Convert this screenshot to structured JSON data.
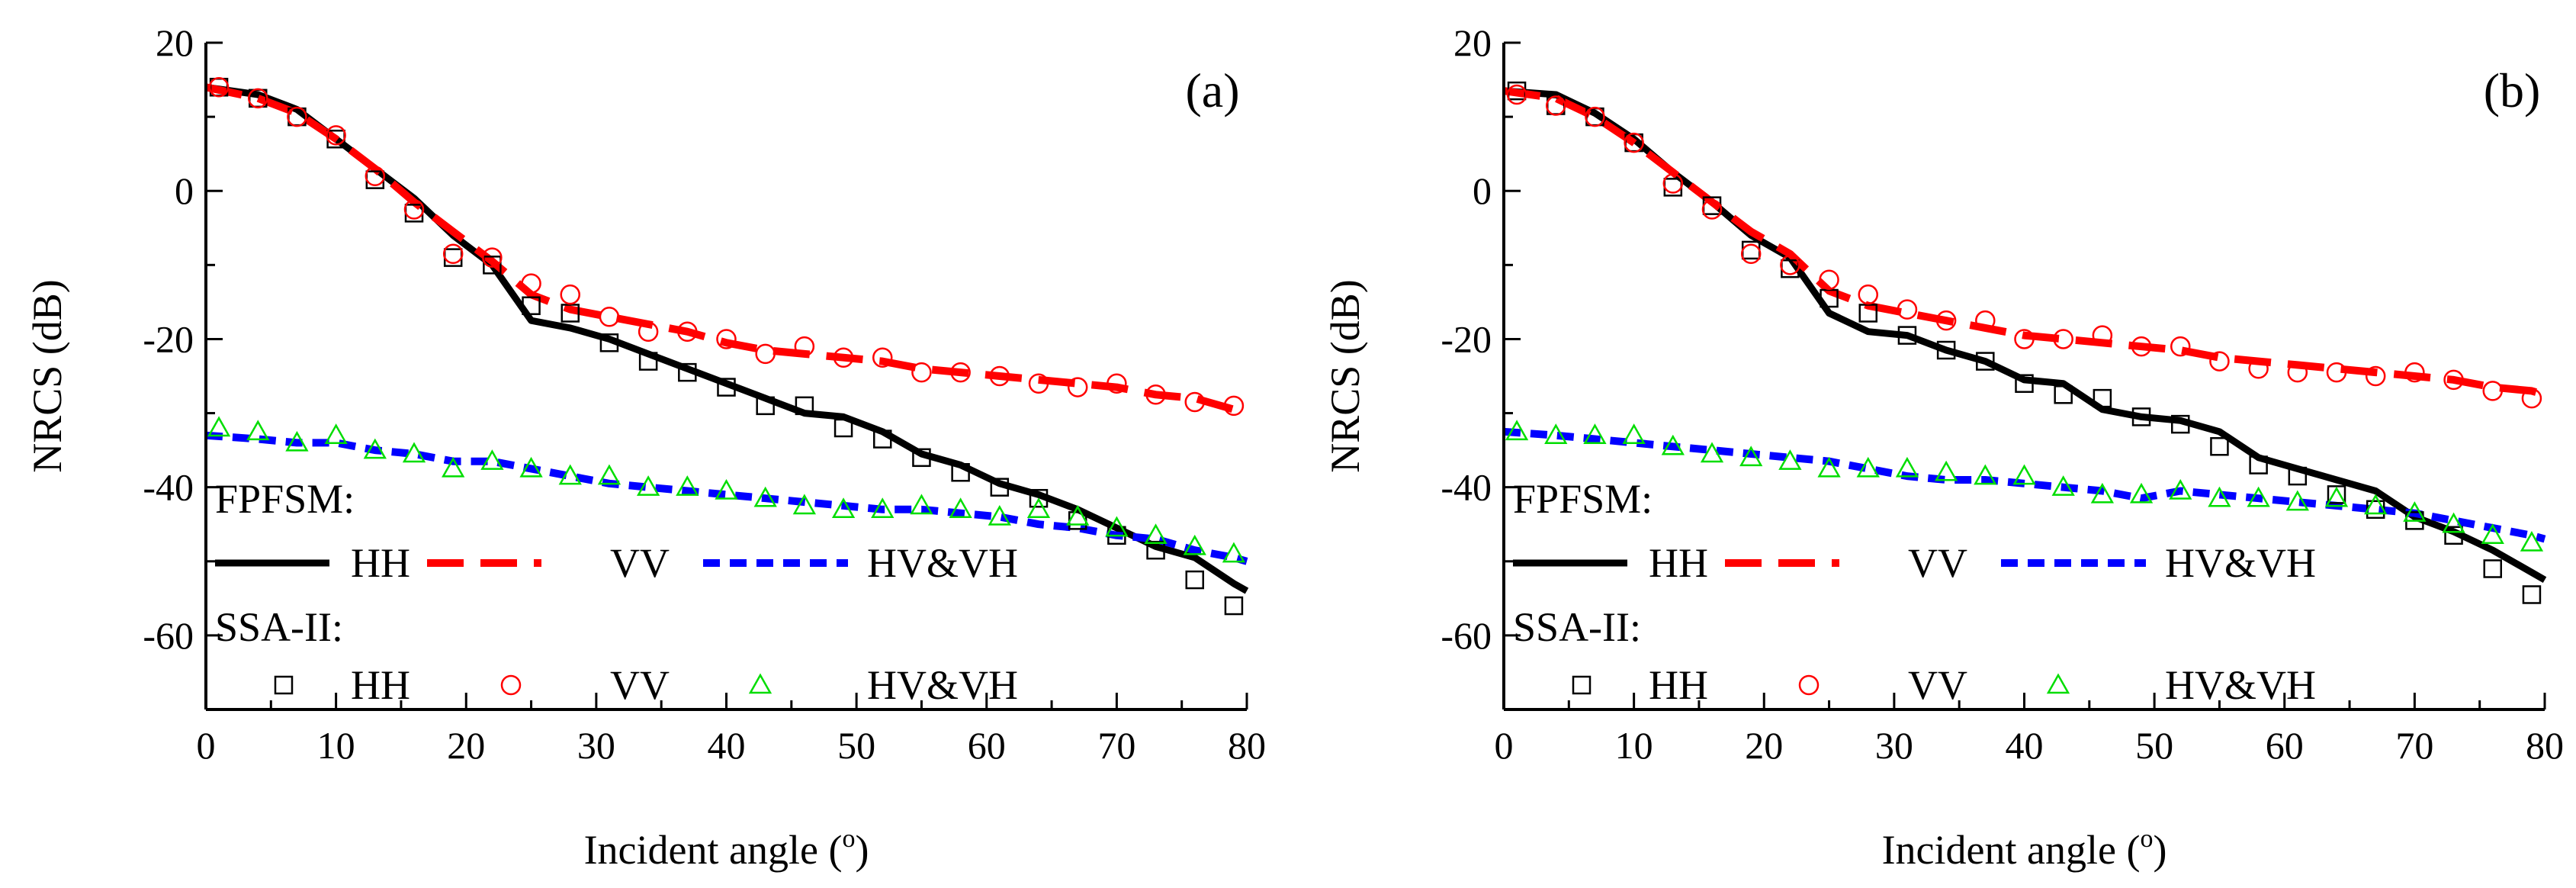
{
  "chart_data": [
    {
      "type": "line",
      "panel_label": "(a)",
      "xlabel": "Incident angle (",
      "xlabel_sup": "o",
      "xlabel_close": ")",
      "ylabel": "NRCS (dB)",
      "xlim": [
        0,
        80
      ],
      "ylim": [
        -70,
        20
      ],
      "xticks": [
        0,
        10,
        20,
        30,
        40,
        50,
        60,
        70,
        80
      ],
      "yticks": [
        20,
        0,
        -20,
        -40,
        -60
      ],
      "legend": {
        "group1_title": "FPFSM:",
        "group2_title": "SSA-II:",
        "labels": [
          "HH",
          "VV",
          "HV&VH"
        ]
      },
      "series": [
        {
          "name": "FPFSM HH",
          "style": "solid",
          "color": "#000000",
          "x": [
            0,
            4,
            7,
            10,
            13,
            16,
            19,
            22,
            25,
            28,
            31,
            34,
            37,
            40,
            43,
            46,
            49,
            52,
            55,
            58,
            61,
            64,
            67,
            70,
            73,
            76,
            79,
            80
          ],
          "y": [
            14,
            13,
            11,
            7,
            3,
            -1,
            -6,
            -10,
            -17.5,
            -18.5,
            -20,
            -22,
            -24,
            -26,
            -28,
            -30,
            -30.5,
            -32.5,
            -35.5,
            -37,
            -39.5,
            -41,
            -43,
            -45.5,
            -48,
            -49.5,
            -53,
            -54
          ]
        },
        {
          "name": "FPFSM VV",
          "style": "longdash",
          "color": "#ff0000",
          "x": [
            0,
            4,
            7,
            10,
            13,
            16,
            19,
            22,
            25,
            28,
            31,
            34,
            37,
            40,
            43,
            46,
            49,
            52,
            55,
            58,
            61,
            64,
            67,
            70,
            73,
            76,
            79,
            80
          ],
          "y": [
            14,
            12.5,
            10.5,
            7,
            3,
            -1.5,
            -5.5,
            -9.5,
            -14,
            -16,
            -17,
            -18,
            -19,
            -20.5,
            -21.5,
            -22,
            -22.5,
            -23,
            -24,
            -24.5,
            -25,
            -25.5,
            -26,
            -26.5,
            -27.5,
            -28,
            -29.5,
            -30
          ]
        },
        {
          "name": "FPFSM HV&VH",
          "style": "shortdash",
          "color": "#0000ff",
          "x": [
            0,
            4,
            7,
            10,
            13,
            16,
            19,
            22,
            25,
            28,
            31,
            34,
            37,
            40,
            43,
            46,
            49,
            52,
            55,
            58,
            61,
            64,
            67,
            70,
            73,
            76,
            79,
            80
          ],
          "y": [
            -33,
            -33.5,
            -34,
            -34,
            -35,
            -35.5,
            -36.5,
            -36.5,
            -37.5,
            -38.5,
            -39.5,
            -40,
            -40.5,
            -41,
            -41.5,
            -42,
            -42.5,
            -43,
            -43,
            -43.5,
            -44,
            -45,
            -45.5,
            -46.5,
            -47,
            -48.5,
            -49.5,
            -50
          ]
        },
        {
          "name": "SSA-II HH",
          "style": "marker-square",
          "color": "#000000",
          "x": [
            1,
            4,
            7,
            10,
            13,
            16,
            19,
            22,
            25,
            28,
            31,
            34,
            37,
            40,
            43,
            46,
            49,
            52,
            55,
            58,
            61,
            64,
            67,
            70,
            73,
            76,
            79
          ],
          "y": [
            14,
            12.5,
            10,
            7,
            1.5,
            -3,
            -9,
            -10,
            -15.5,
            -16.5,
            -20.5,
            -23,
            -24.5,
            -26.5,
            -29,
            -29,
            -32,
            -33.5,
            -36,
            -38,
            -40,
            -41.5,
            -44.5,
            -46.5,
            -48.5,
            -52.5,
            -56
          ]
        },
        {
          "name": "SSA-II VV",
          "style": "marker-circle",
          "color": "#ff0000",
          "x": [
            1,
            4,
            7,
            10,
            13,
            16,
            19,
            22,
            25,
            28,
            31,
            34,
            37,
            40,
            43,
            46,
            49,
            52,
            55,
            58,
            61,
            64,
            67,
            70,
            73,
            76,
            79
          ],
          "y": [
            14,
            12.5,
            10,
            7.5,
            2,
            -2.5,
            -8.5,
            -9,
            -12.5,
            -14,
            -17,
            -19,
            -19,
            -20,
            -22,
            -21,
            -22.5,
            -22.5,
            -24.5,
            -24.5,
            -25,
            -26,
            -26.5,
            -26,
            -27.5,
            -28.5,
            -29
          ]
        },
        {
          "name": "SSA-II HV&VH",
          "style": "marker-triangle",
          "color": "#00dd00",
          "x": [
            1,
            4,
            7,
            10,
            13,
            16,
            19,
            22,
            25,
            28,
            31,
            34,
            37,
            40,
            43,
            46,
            49,
            52,
            55,
            58,
            61,
            64,
            67,
            70,
            73,
            76,
            79
          ],
          "y": [
            -32,
            -32.5,
            -34,
            -33,
            -35,
            -35.5,
            -37.5,
            -36.5,
            -37.5,
            -38.5,
            -38.5,
            -40,
            -40,
            -40.5,
            -41.5,
            -42.5,
            -43,
            -43,
            -42.5,
            -43,
            -44,
            -43,
            -44,
            -45.5,
            -46.5,
            -48,
            -49
          ]
        }
      ]
    },
    {
      "type": "line",
      "panel_label": "(b)",
      "xlabel": "Incident angle (",
      "xlabel_sup": "o",
      "xlabel_close": ")",
      "ylabel": "NRCS (dB)",
      "xlim": [
        0,
        80
      ],
      "ylim": [
        -70,
        20
      ],
      "xticks": [
        0,
        10,
        20,
        30,
        40,
        50,
        60,
        70,
        80
      ],
      "yticks": [
        20,
        0,
        -20,
        -40,
        -60
      ],
      "legend": {
        "group1_title": "FPFSM:",
        "group2_title": "SSA-II:",
        "labels": [
          "HH",
          "VV",
          "HV&VH"
        ]
      },
      "series": [
        {
          "name": "FPFSM HH",
          "style": "solid",
          "color": "#000000",
          "x": [
            0,
            4,
            7,
            10,
            13,
            16,
            19,
            22,
            25,
            28,
            31,
            34,
            37,
            40,
            43,
            46,
            49,
            52,
            55,
            58,
            61,
            64,
            67,
            70,
            73,
            76,
            79,
            80
          ],
          "y": [
            13.5,
            13,
            10.5,
            7,
            2.5,
            -1.5,
            -6,
            -9,
            -16.5,
            -19,
            -19.5,
            -21.5,
            -23,
            -25.5,
            -26,
            -29.5,
            -30.5,
            -31,
            -32.5,
            -36,
            -37.5,
            -39,
            -40.5,
            -44,
            -46,
            -48.5,
            -51.5,
            -52.5
          ]
        },
        {
          "name": "FPFSM VV",
          "style": "longdash",
          "color": "#ff0000",
          "x": [
            0,
            4,
            7,
            10,
            13,
            16,
            19,
            22,
            25,
            28,
            31,
            34,
            37,
            40,
            43,
            46,
            49,
            52,
            55,
            58,
            61,
            64,
            67,
            70,
            73,
            76,
            79,
            80
          ],
          "y": [
            13.5,
            12.5,
            10,
            6.5,
            2.5,
            -1.5,
            -5.5,
            -8.5,
            -13.5,
            -15.5,
            -16.5,
            -17.5,
            -18.5,
            -19.5,
            -20,
            -20.5,
            -21,
            -21.5,
            -22.5,
            -23,
            -23.5,
            -24,
            -24.5,
            -25,
            -25.5,
            -26.5,
            -27,
            -27.5
          ]
        },
        {
          "name": "FPFSM HV&VH",
          "style": "shortdash",
          "color": "#0000ff",
          "x": [
            0,
            4,
            7,
            10,
            13,
            16,
            19,
            22,
            25,
            28,
            31,
            34,
            37,
            40,
            43,
            46,
            49,
            52,
            55,
            58,
            61,
            64,
            67,
            70,
            73,
            76,
            79,
            80
          ],
          "y": [
            -32.5,
            -33,
            -33.5,
            -34,
            -34.5,
            -35,
            -35.5,
            -36,
            -36.5,
            -37.5,
            -38.5,
            -39,
            -39,
            -39.5,
            -40,
            -40.5,
            -41.5,
            -40.5,
            -41,
            -41.5,
            -42,
            -42.5,
            -43,
            -43.5,
            -44.5,
            -45.5,
            -46.5,
            -47
          ]
        },
        {
          "name": "SSA-II HH",
          "style": "marker-square",
          "color": "#000000",
          "x": [
            1,
            4,
            7,
            10,
            13,
            16,
            19,
            22,
            25,
            28,
            31,
            34,
            37,
            40,
            43,
            46,
            49,
            52,
            55,
            58,
            61,
            64,
            67,
            70,
            73,
            76,
            79
          ],
          "y": [
            13.5,
            11.5,
            10,
            6.5,
            0.5,
            -2,
            -8,
            -10.5,
            -14.5,
            -16.5,
            -19.5,
            -21.5,
            -23,
            -26,
            -27.5,
            -28,
            -30.5,
            -31.5,
            -34.5,
            -37,
            -38.5,
            -41,
            -43,
            -44.5,
            -46.5,
            -51,
            -54.5
          ]
        },
        {
          "name": "SSA-II VV",
          "style": "marker-circle",
          "color": "#ff0000",
          "x": [
            1,
            4,
            7,
            10,
            13,
            16,
            19,
            22,
            25,
            28,
            31,
            34,
            37,
            40,
            43,
            46,
            49,
            52,
            55,
            58,
            61,
            64,
            67,
            70,
            73,
            76,
            79
          ],
          "y": [
            13,
            11.5,
            10,
            6.5,
            1,
            -2.5,
            -8.5,
            -10,
            -12,
            -14,
            -16,
            -17.5,
            -17.5,
            -20,
            -20,
            -19.5,
            -21,
            -21,
            -23,
            -24,
            -24.5,
            -24.5,
            -25,
            -24.5,
            -25.5,
            -27,
            -28
          ]
        },
        {
          "name": "SSA-II HV&VH",
          "style": "marker-triangle",
          "color": "#00dd00",
          "x": [
            1,
            4,
            7,
            10,
            13,
            16,
            19,
            22,
            25,
            28,
            31,
            34,
            37,
            40,
            43,
            46,
            49,
            52,
            55,
            58,
            61,
            64,
            67,
            70,
            73,
            76,
            79
          ],
          "y": [
            -32.5,
            -33,
            -33,
            -33,
            -34.5,
            -35.5,
            -36,
            -36.5,
            -37.5,
            -37.5,
            -37.5,
            -38,
            -38.5,
            -38.5,
            -40,
            -41,
            -41,
            -40.5,
            -41.5,
            -41.5,
            -42,
            -41.5,
            -42.5,
            -43.5,
            -45,
            -46.5,
            -47.5
          ]
        }
      ]
    }
  ]
}
